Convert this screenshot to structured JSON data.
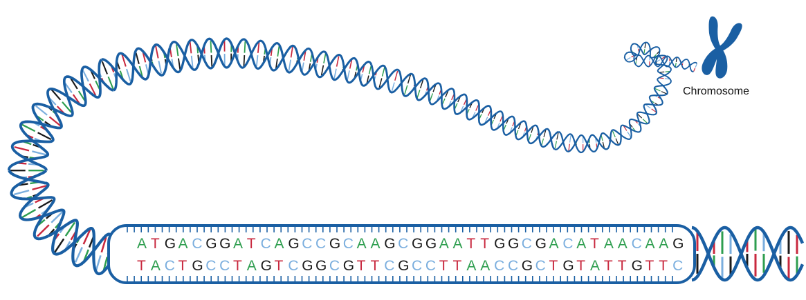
{
  "label": "Chromosome",
  "sequence": {
    "top": "ATGACGGATCAGCCGCAAGCGGAATTGGCGACATAACAAG",
    "bottom": "TACTGCCTAGTCGGCGTTCGCCTTAACCGCTGTATTGTTC"
  },
  "colors": {
    "backbone": "#1a5fa3",
    "chromosome": "#1a5fa3",
    "A": "#2e9e4f",
    "T": "#c8283e",
    "G": "#1a1a1a",
    "C": "#7aaede"
  },
  "icons": {
    "chromosome": "chromosome-icon"
  }
}
